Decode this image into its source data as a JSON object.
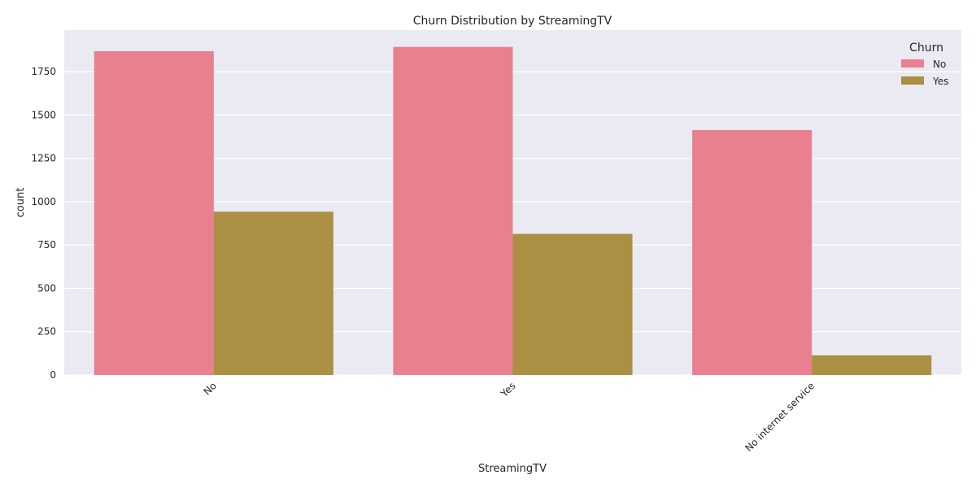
{
  "chart_data": {
    "type": "bar",
    "title": "Churn Distribution by StreamingTV",
    "xlabel": "StreamingTV",
    "ylabel": "count",
    "categories": [
      "No",
      "Yes",
      "No internet service"
    ],
    "series": [
      {
        "name": "No",
        "values": [
          1868,
          1893,
          1413
        ],
        "color": "#e8808f"
      },
      {
        "name": "Yes",
        "values": [
          942,
          814,
          113
        ],
        "color": "#ab8f42"
      }
    ],
    "ylim": [
      0,
      1990
    ],
    "yticks": [
      0,
      250,
      500,
      750,
      1000,
      1250,
      1500,
      1750
    ],
    "grid": true,
    "legend": {
      "title": "Churn",
      "placement": "top-right"
    },
    "background": "#eaeaf2",
    "grid_color": "#ffffff"
  }
}
